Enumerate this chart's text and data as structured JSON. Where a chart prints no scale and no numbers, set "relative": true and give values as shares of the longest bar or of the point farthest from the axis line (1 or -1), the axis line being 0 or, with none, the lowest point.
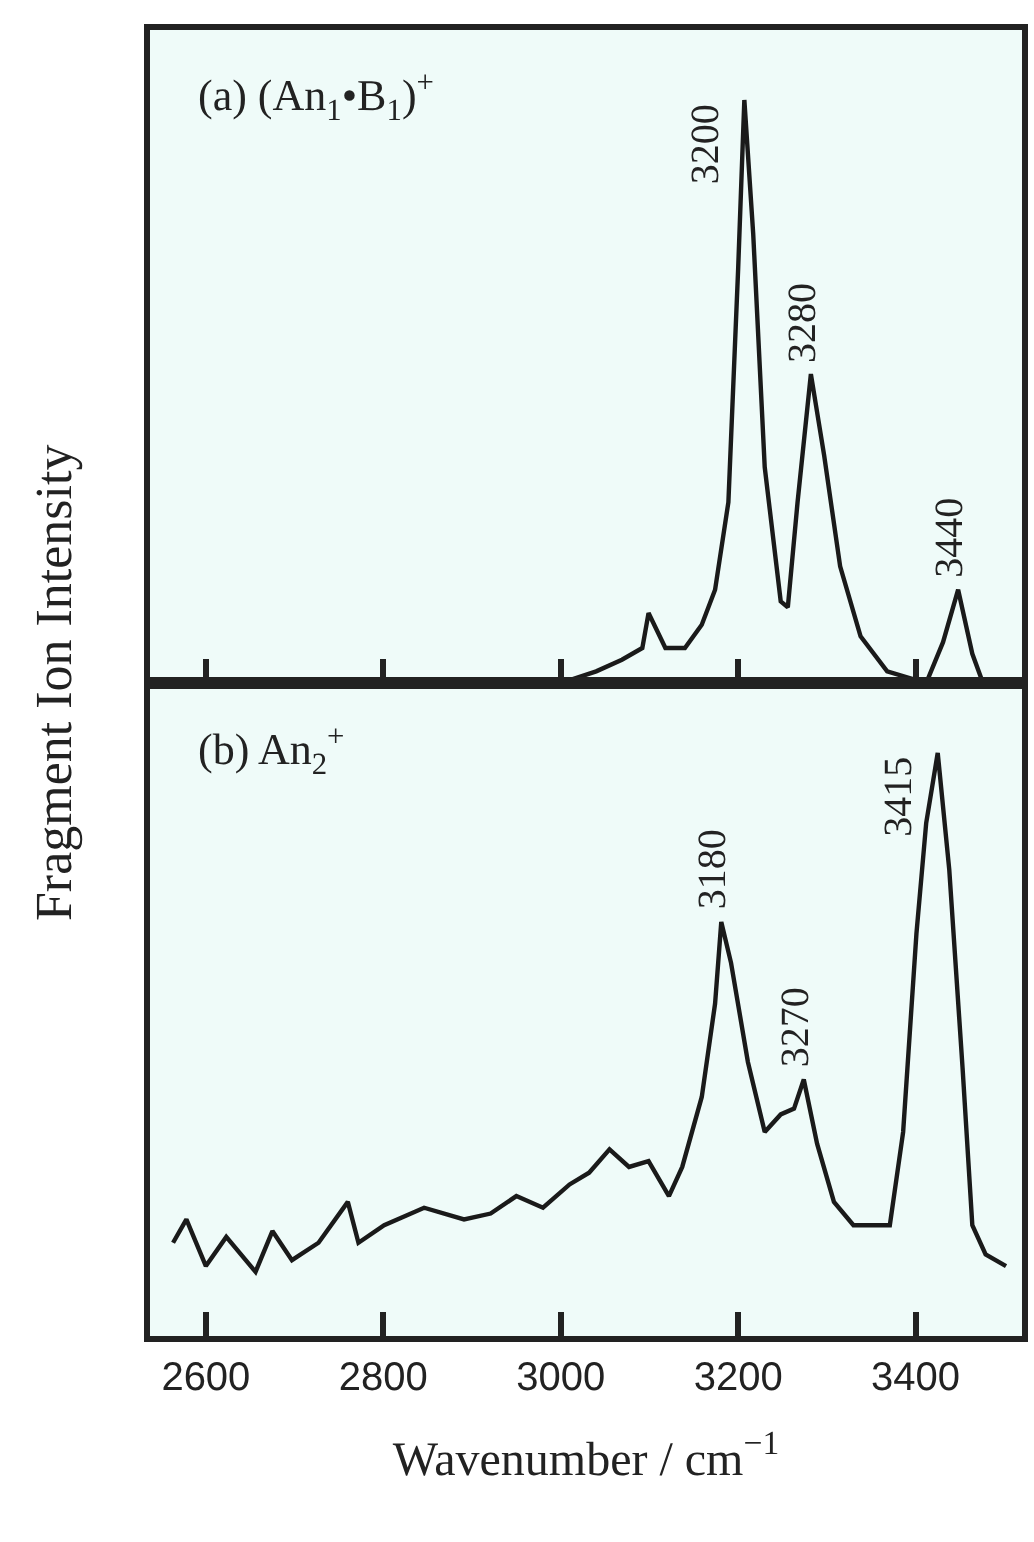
{
  "chart_data": [
    {
      "type": "line",
      "title": "(a) (An$_{1}$•B$_{1}$)$^{+}$",
      "ylabel": "Fragment Ion Intensity",
      "relative": true,
      "xlim": [
        2537,
        3520
      ],
      "xticks": [
        2600,
        2800,
        3000,
        3200,
        3400
      ],
      "tick_labels": false,
      "series": [
        {
          "color": "#1a1a1a",
          "x": [
            3000,
            3040,
            3069,
            3092,
            3099,
            3118,
            3140,
            3159,
            3174,
            3189,
            3200,
            3207,
            3217,
            3230,
            3248,
            3256,
            3267,
            3282,
            3297,
            3315,
            3338,
            3368,
            3412,
            3431,
            3448,
            3464,
            3476
          ],
          "values": [
            0,
            0.02,
            0.04,
            0.06,
            0.12,
            0.06,
            0.06,
            0.1,
            0.16,
            0.31,
            0.71,
            1.0,
            0.77,
            0.37,
            0.14,
            0.13,
            0.31,
            0.53,
            0.39,
            0.2,
            0.08,
            0.02,
            0,
            0.07,
            0.16,
            0.05,
            0
          ]
        }
      ],
      "annotations": [
        {
          "text": "3200",
          "x": 3207,
          "y": 1.0
        },
        {
          "text": "3280",
          "x": 3282,
          "y": 0.53
        },
        {
          "text": "3440",
          "x": 3448,
          "y": 0.16
        }
      ]
    },
    {
      "type": "line",
      "title": "(b) An$_{2}$$^{+}$",
      "xlabel": "Wavenumber / cm$^{−1}$",
      "relative": true,
      "xlim": [
        2537,
        3520
      ],
      "xticks": [
        2600,
        2800,
        3000,
        3200,
        3400
      ],
      "tick_labels": "x",
      "series": [
        {
          "color": "#1a1a1a",
          "x": [
            2563,
            2578,
            2600,
            2623,
            2656,
            2675,
            2697,
            2727,
            2760,
            2772,
            2801,
            2846,
            2891,
            2921,
            2950,
            2980,
            3010,
            3032,
            3055,
            3077,
            3099,
            3122,
            3137,
            3159,
            3174,
            3181,
            3192,
            3211,
            3230,
            3248,
            3263,
            3274,
            3289,
            3308,
            3330,
            3371,
            3386,
            3401,
            3412,
            3425,
            3438,
            3453,
            3464,
            3479,
            3502
          ],
          "values": [
            0.16,
            0.2,
            0.12,
            0.17,
            0.11,
            0.18,
            0.13,
            0.16,
            0.23,
            0.16,
            0.19,
            0.22,
            0.2,
            0.21,
            0.24,
            0.22,
            0.26,
            0.28,
            0.32,
            0.29,
            0.3,
            0.24,
            0.29,
            0.41,
            0.57,
            0.71,
            0.64,
            0.47,
            0.35,
            0.38,
            0.39,
            0.44,
            0.33,
            0.23,
            0.19,
            0.19,
            0.35,
            0.69,
            0.88,
            1.0,
            0.8,
            0.46,
            0.19,
            0.14,
            0.12
          ]
        }
      ],
      "annotations": [
        {
          "text": "3180",
          "x": 3181,
          "y": 0.71
        },
        {
          "text": "3270",
          "x": 3274,
          "y": 0.44
        },
        {
          "text": "3415",
          "x": 3425,
          "y": 1.0
        }
      ]
    }
  ]
}
